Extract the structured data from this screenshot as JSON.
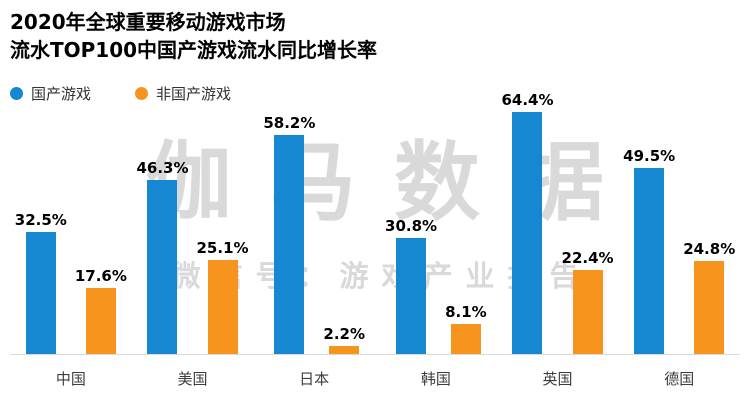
{
  "title": {
    "line1": "2020年全球重要移动游戏市场",
    "line2": "流水TOP100中国产游戏流水同比增长率"
  },
  "watermark": {
    "line1": "伽马数据",
    "line2": "微信号：游戏产业报告"
  },
  "colors": {
    "domestic_blue": "#1588D1",
    "foreign_orange": "#F7941E",
    "axis_line": "#D9D9D9",
    "watermark_gray": "#D9D9D9"
  },
  "chart_data": {
    "type": "bar",
    "title": "2020年全球重要移动游戏市场流水TOP100中国产游戏流水同比增长率",
    "categories": [
      "中国",
      "美国",
      "日本",
      "韩国",
      "英国",
      "德国"
    ],
    "series": [
      {
        "name": "国产游戏",
        "color": "#1588D1",
        "values": [
          32.5,
          46.3,
          58.2,
          30.8,
          64.4,
          49.5
        ]
      },
      {
        "name": "非国产游戏",
        "color": "#F7941E",
        "values": [
          17.6,
          25.1,
          2.2,
          8.1,
          22.4,
          24.8
        ]
      }
    ],
    "value_suffix": "%",
    "data_labels": true,
    "ylim": [
      0,
      70
    ],
    "grid": false,
    "legend_position": "top-left"
  }
}
